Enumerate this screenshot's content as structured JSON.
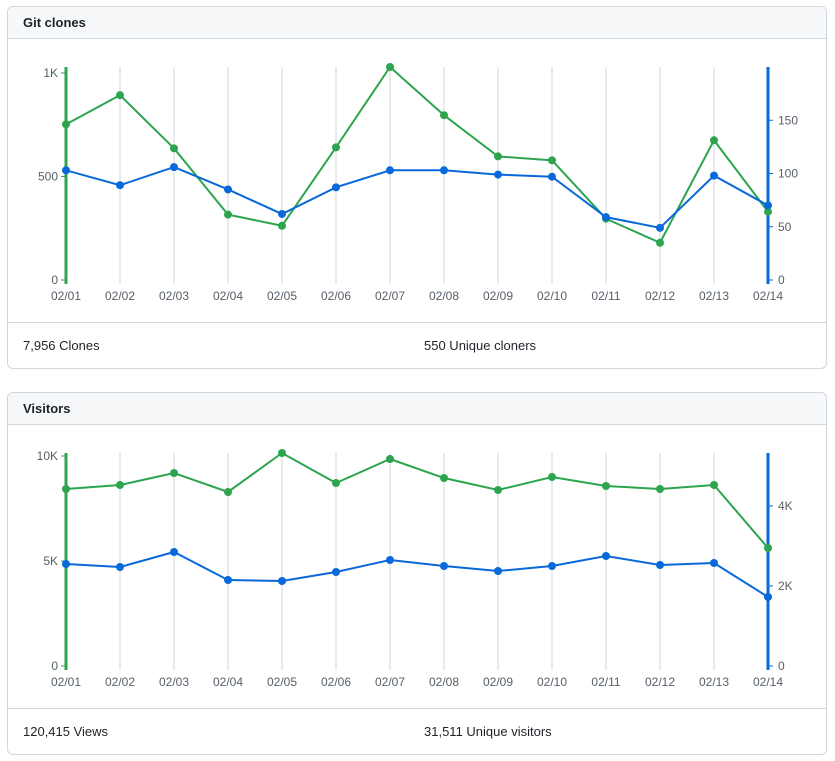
{
  "panels": [
    {
      "title": "Git clones",
      "footer": {
        "total": "7,956 Clones",
        "unique": "550 Unique cloners"
      },
      "chart_data": {
        "type": "line",
        "categories": [
          "02/01",
          "02/02",
          "02/03",
          "02/04",
          "02/05",
          "02/06",
          "02/07",
          "02/08",
          "02/09",
          "02/10",
          "02/11",
          "02/12",
          "02/13",
          "02/14"
        ],
        "left_axis": {
          "ticks": [
            0,
            500,
            1000
          ],
          "tick_labels": [
            "0",
            "500",
            "1K"
          ],
          "ylim": [
            0,
            1000
          ],
          "color": "#2da44e"
        },
        "right_axis": {
          "ticks": [
            0,
            50,
            100,
            150
          ],
          "tick_labels": [
            "0",
            "50",
            "100",
            "150"
          ],
          "ylim": [
            0,
            200
          ],
          "color": "#0969da"
        },
        "series": [
          {
            "axis": "left",
            "color": "#2da44e",
            "values": [
              752,
              893,
              636,
              316,
              262,
              641,
              1029,
              796,
              597,
              578,
              296,
              180,
              675,
              330
            ]
          },
          {
            "axis": "right",
            "color": "#0969da",
            "values": [
              103,
              89,
              106,
              85,
              62,
              87,
              103,
              103,
              99,
              97,
              59,
              49,
              98,
              70
            ]
          }
        ],
        "grid": "vertical"
      }
    },
    {
      "title": "Visitors",
      "footer": {
        "total": "120,415 Views",
        "unique": "31,511 Unique visitors"
      },
      "chart_data": {
        "type": "line",
        "categories": [
          "02/01",
          "02/02",
          "02/03",
          "02/04",
          "02/05",
          "02/06",
          "02/07",
          "02/08",
          "02/09",
          "02/10",
          "02/11",
          "02/12",
          "02/13",
          "02/14"
        ],
        "left_axis": {
          "ticks": [
            0,
            5000,
            10000
          ],
          "tick_labels": [
            "0",
            "5K",
            "10K"
          ],
          "ylim": [
            0,
            10000
          ],
          "color": "#2da44e"
        },
        "right_axis": {
          "ticks": [
            0,
            2000,
            4000
          ],
          "tick_labels": [
            "0",
            "2K",
            "4K"
          ],
          "ylim": [
            0,
            5000
          ],
          "color": "#0969da"
        },
        "series": [
          {
            "axis": "left",
            "color": "#2da44e",
            "values": [
              8429,
              8619,
              9190,
              8286,
              10143,
              8714,
              9857,
              8952,
              8381,
              9000,
              8571,
              8429,
              8619,
              5619
            ]
          },
          {
            "axis": "right",
            "color": "#0969da",
            "values": [
              2550,
              2475,
              2850,
              2150,
              2125,
              2350,
              2650,
              2500,
              2375,
              2500,
              2750,
              2525,
              2575,
              1725
            ]
          }
        ],
        "grid": "vertical"
      }
    }
  ]
}
